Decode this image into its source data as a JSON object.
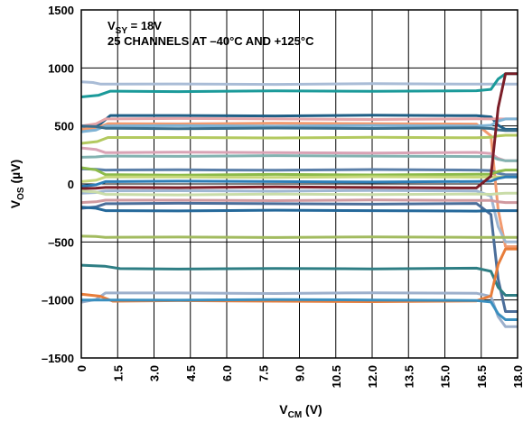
{
  "chart_data": {
    "type": "line",
    "annotation": {
      "line1_main": "V",
      "line1_sub": "SY",
      "line1_rest": " = 18V",
      "line2": "25 CHANNELS AT –40°C AND +125°C"
    },
    "xlabel": {
      "main": "V",
      "sub": "CM",
      "rest": " (V)"
    },
    "ylabel": {
      "main": "V",
      "sub": "OS",
      "rest": " (µV)"
    },
    "xlim": [
      0,
      18
    ],
    "ylim": [
      -1500,
      1500
    ],
    "x_ticks": [
      0,
      1.5,
      3.0,
      4.5,
      6.0,
      7.5,
      9.0,
      10.5,
      12.0,
      13.5,
      15.0,
      16.5,
      18.0
    ],
    "x_tick_labels": [
      "0",
      "1.5",
      "3.0",
      "4.5",
      "6.0",
      "7.5",
      "9.0",
      "10.5",
      "12.0",
      "13.5",
      "15.0",
      "16.5",
      "18.0"
    ],
    "y_ticks": [
      -1500,
      -1000,
      -500,
      0,
      500,
      1000,
      1500
    ],
    "y_tick_labels": [
      "–1500",
      "–1000",
      "–500",
      "0",
      "500",
      "1000",
      "1500"
    ],
    "grid": true,
    "series": [
      {
        "color": "#a9bcd6",
        "level": 860,
        "start": 880,
        "end": 860,
        "edge": 0.8
      },
      {
        "color": "#1b9a9a",
        "level": 800,
        "start": 750,
        "end": 950,
        "edge": 1.2
      },
      {
        "color": "#1f5f86",
        "level": 590,
        "start": 470,
        "end": 470,
        "edge": 1.2
      },
      {
        "color": "#e6a4a8",
        "level": 560,
        "start": 500,
        "end": 560,
        "edge": 1.0
      },
      {
        "color": "#f29a6f",
        "level": 520,
        "start": 470,
        "end": -540,
        "edge": 1.1
      },
      {
        "color": "#7fb3d5",
        "level": 500,
        "start": 450,
        "end": 560,
        "edge": 1.0
      },
      {
        "color": "#3a6e8c",
        "level": 480,
        "start": 500,
        "end": 460,
        "edge": 1.0
      },
      {
        "color": "#b3c95f",
        "level": 400,
        "start": 350,
        "end": 420,
        "edge": 1.1
      },
      {
        "color": "#d9a3b5",
        "level": 270,
        "start": 310,
        "end": 200,
        "edge": 1.0
      },
      {
        "color": "#82b2b0",
        "level": 240,
        "start": 230,
        "end": 200,
        "edge": 1.0
      },
      {
        "color": "#5b7fa8",
        "level": 120,
        "start": 130,
        "end": 80,
        "edge": 1.0
      },
      {
        "color": "#8dbb4a",
        "level": 80,
        "start": 140,
        "end": 120,
        "edge": 1.0
      },
      {
        "color": "#c7d87a",
        "level": 60,
        "start": 20,
        "end": 60,
        "edge": 1.0
      },
      {
        "color": "#2c7db7",
        "level": 20,
        "start": -20,
        "end": 60,
        "edge": 1.0
      },
      {
        "color": "#7b1e28",
        "level": -30,
        "start": -40,
        "end": 950,
        "edge": 1.0
      },
      {
        "color": "#9fb7d3",
        "level": -60,
        "start": -80,
        "end": -500,
        "edge": 1.0
      },
      {
        "color": "#c9dca8",
        "level": -90,
        "start": -60,
        "end": -80,
        "edge": 1.0
      },
      {
        "color": "#d09aa0",
        "level": -140,
        "start": -160,
        "end": -160,
        "edge": 1.0
      },
      {
        "color": "#4b6e9a",
        "level": -170,
        "start": -210,
        "end": -1100,
        "edge": 1.0
      },
      {
        "color": "#24689a",
        "level": -230,
        "start": -200,
        "end": -230,
        "edge": 1.0
      },
      {
        "color": "#a2bb5f",
        "level": -460,
        "start": -450,
        "end": -460,
        "edge": 1.0
      },
      {
        "color": "#2e7e84",
        "level": -730,
        "start": -700,
        "end": -960,
        "edge": 1.6
      },
      {
        "color": "#9db0cc",
        "level": -940,
        "start": -1020,
        "end": -1230,
        "edge": 1.0
      },
      {
        "color": "#e87d3a",
        "level": -1010,
        "start": -950,
        "end": -560,
        "edge": 1.3
      },
      {
        "color": "#3a8fbf",
        "level": -1000,
        "start": -1000,
        "end": -1170,
        "edge": 1.0
      }
    ]
  }
}
